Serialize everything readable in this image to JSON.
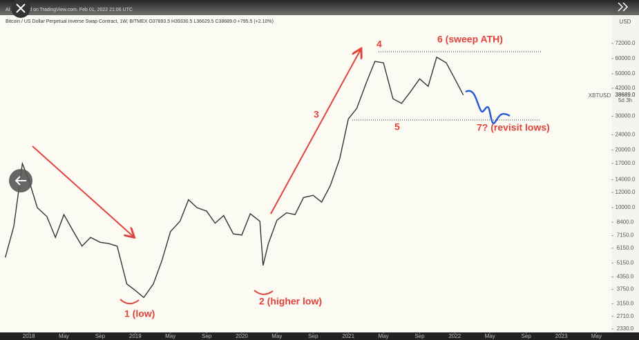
{
  "header": {
    "publisher": "Al published on TradingView.com, Feb 01, 2022 21:06 UTC",
    "symbol_line": "Bitcoin / US Dollar Perpetual Inverse Swap Contract, 1W, BITMEX  O37893.5  H39330.5  L36629.5  C38689.0  +795.5 (+2.10%)"
  },
  "chart_data": {
    "type": "line",
    "log_scale": true,
    "currency": "USD",
    "symbol": "XBTUSD",
    "countdown": "5d 3h",
    "last_price": {
      "value": 38689,
      "label": "38689.0"
    },
    "x": [
      2017.78,
      2017.86,
      2017.94,
      2018.0,
      2018.08,
      2018.17,
      2018.25,
      2018.33,
      2018.42,
      2018.5,
      2018.58,
      2018.67,
      2018.75,
      2018.83,
      2018.92,
      2019.0,
      2019.08,
      2019.17,
      2019.25,
      2019.33,
      2019.42,
      2019.5,
      2019.58,
      2019.67,
      2019.75,
      2019.83,
      2019.92,
      2020.0,
      2020.08,
      2020.17,
      2020.2,
      2020.25,
      2020.33,
      2020.42,
      2020.5,
      2020.58,
      2020.67,
      2020.75,
      2020.83,
      2020.92,
      2021.0,
      2021.08,
      2021.17,
      2021.25,
      2021.33,
      2021.42,
      2021.5,
      2021.58,
      2021.67,
      2021.75,
      2021.83,
      2021.92,
      2022.0,
      2022.08
    ],
    "series": [
      {
        "name": "XBTUSD",
        "color": "#333333",
        "values": [
          5500,
          8000,
          17000,
          14000,
          10000,
          9000,
          7000,
          9200,
          7500,
          6300,
          7000,
          6600,
          6500,
          6300,
          4000,
          3700,
          3400,
          4000,
          5300,
          7500,
          8500,
          11000,
          10000,
          9600,
          8300,
          9100,
          7300,
          7200,
          9300,
          8500,
          5000,
          6500,
          8600,
          9400,
          9200,
          11300,
          11600,
          10700,
          13000,
          18000,
          29000,
          33000,
          45000,
          58000,
          57000,
          37000,
          35000,
          40000,
          47000,
          43000,
          61000,
          57000,
          47000,
          38689
        ]
      }
    ],
    "xlim": [
      2017.73,
      2023.47
    ],
    "xticks": [
      {
        "value": 2018,
        "label": "2018"
      },
      {
        "value": 2018.33,
        "label": "May"
      },
      {
        "value": 2018.67,
        "label": "Sep"
      },
      {
        "value": 2019,
        "label": "2019"
      },
      {
        "value": 2019.33,
        "label": "May"
      },
      {
        "value": 2019.67,
        "label": "Sep"
      },
      {
        "value": 2020,
        "label": "2020"
      },
      {
        "value": 2020.33,
        "label": "May"
      },
      {
        "value": 2020.67,
        "label": "Sep"
      },
      {
        "value": 2021,
        "label": "2021"
      },
      {
        "value": 2021.33,
        "label": "May"
      },
      {
        "value": 2021.67,
        "label": "Sep"
      },
      {
        "value": 2022,
        "label": "2022"
      },
      {
        "value": 2022.33,
        "label": "May"
      },
      {
        "value": 2022.67,
        "label": "Sep"
      },
      {
        "value": 2023,
        "label": "2023"
      },
      {
        "value": 2023.33,
        "label": "May"
      }
    ],
    "ylim": [
      2180,
      101000
    ],
    "yticks": [
      {
        "value": 72000,
        "label": "72000.0"
      },
      {
        "value": 60000,
        "label": "60000.0"
      },
      {
        "value": 50000,
        "label": "50000.0"
      },
      {
        "value": 42000,
        "label": "42000.0"
      },
      {
        "value": 30000,
        "label": "30000.0"
      },
      {
        "value": 24000,
        "label": "24000.0"
      },
      {
        "value": 20000,
        "label": "20000.0"
      },
      {
        "value": 17000,
        "label": "17000.0"
      },
      {
        "value": 14000,
        "label": "14000.0"
      },
      {
        "value": 12000,
        "label": "12000.0"
      },
      {
        "value": 10000,
        "label": "10000.0"
      },
      {
        "value": 8400,
        "label": "8400.0"
      },
      {
        "value": 7150,
        "label": "7150.0"
      },
      {
        "value": 6150,
        "label": "6150.0"
      },
      {
        "value": 5150,
        "label": "5150.0"
      },
      {
        "value": 4350,
        "label": "4350.0"
      },
      {
        "value": 3750,
        "label": "3750.0"
      },
      {
        "value": 3150,
        "label": "3150.0"
      },
      {
        "value": 2710,
        "label": "2710.0"
      },
      {
        "value": 2330,
        "label": "2330.0"
      }
    ],
    "annotations": [
      "1 (low)",
      "2 (higher low)",
      "3",
      "4",
      "5",
      "6 (sweep ATH)",
      "7? (revisit lows)"
    ]
  }
}
